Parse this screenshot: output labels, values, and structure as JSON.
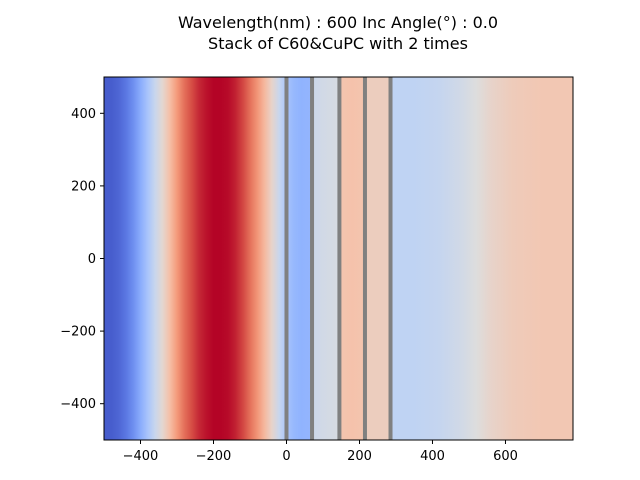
{
  "chart_data": {
    "type": "heatmap",
    "title_line1": "Wavelength(nm) : 600   Inc Angle(°) : 0.0",
    "title_line2": "Stack of C60&CuPC with 2 times",
    "xlabel": "",
    "ylabel": "",
    "xlim": [
      -500,
      785
    ],
    "ylim": [
      -500,
      500
    ],
    "x_ticks": [
      -400,
      -200,
      0,
      200,
      400,
      600
    ],
    "x_tick_labels": [
      "−400",
      "−200",
      "0",
      "200",
      "400",
      "600"
    ],
    "y_ticks": [
      400,
      200,
      0,
      -200,
      -400
    ],
    "y_tick_labels": [
      "400",
      "200",
      "0",
      "−200",
      "−400"
    ],
    "colormap": "coolwarm",
    "layer_boundaries_x": [
      0,
      70,
      145,
      215,
      285
    ],
    "boundary_color": "#808080",
    "intensity_profile": [
      {
        "x": -500,
        "v": 0.04
      },
      {
        "x": -480,
        "v": 0.04
      },
      {
        "x": -460,
        "v": 0.06
      },
      {
        "x": -440,
        "v": 0.1
      },
      {
        "x": -420,
        "v": 0.16
      },
      {
        "x": -400,
        "v": 0.24
      },
      {
        "x": -380,
        "v": 0.33
      },
      {
        "x": -360,
        "v": 0.43
      },
      {
        "x": -340,
        "v": 0.53
      },
      {
        "x": -320,
        "v": 0.64
      },
      {
        "x": -300,
        "v": 0.75
      },
      {
        "x": -280,
        "v": 0.84
      },
      {
        "x": -260,
        "v": 0.9
      },
      {
        "x": -240,
        "v": 0.95
      },
      {
        "x": -220,
        "v": 0.98
      },
      {
        "x": -200,
        "v": 1.0
      },
      {
        "x": -180,
        "v": 1.0
      },
      {
        "x": -160,
        "v": 0.99
      },
      {
        "x": -140,
        "v": 0.96
      },
      {
        "x": -120,
        "v": 0.91
      },
      {
        "x": -100,
        "v": 0.84
      },
      {
        "x": -80,
        "v": 0.76
      },
      {
        "x": -60,
        "v": 0.66
      },
      {
        "x": -40,
        "v": 0.55
      },
      {
        "x": -20,
        "v": 0.43
      },
      {
        "x": 0,
        "v": 0.33
      },
      {
        "x": 20,
        "v": 0.28
      },
      {
        "x": 40,
        "v": 0.26
      },
      {
        "x": 69,
        "v": 0.27
      },
      {
        "x": 71,
        "v": 0.44
      },
      {
        "x": 100,
        "v": 0.46
      },
      {
        "x": 144,
        "v": 0.48
      },
      {
        "x": 146,
        "v": 0.62
      },
      {
        "x": 180,
        "v": 0.63
      },
      {
        "x": 214,
        "v": 0.62
      },
      {
        "x": 216,
        "v": 0.58
      },
      {
        "x": 250,
        "v": 0.58
      },
      {
        "x": 284,
        "v": 0.58
      },
      {
        "x": 286,
        "v": 0.4
      },
      {
        "x": 350,
        "v": 0.4
      },
      {
        "x": 420,
        "v": 0.42
      },
      {
        "x": 480,
        "v": 0.46
      },
      {
        "x": 520,
        "v": 0.5
      },
      {
        "x": 560,
        "v": 0.55
      },
      {
        "x": 620,
        "v": 0.59
      },
      {
        "x": 700,
        "v": 0.61
      },
      {
        "x": 785,
        "v": 0.61
      }
    ]
  }
}
